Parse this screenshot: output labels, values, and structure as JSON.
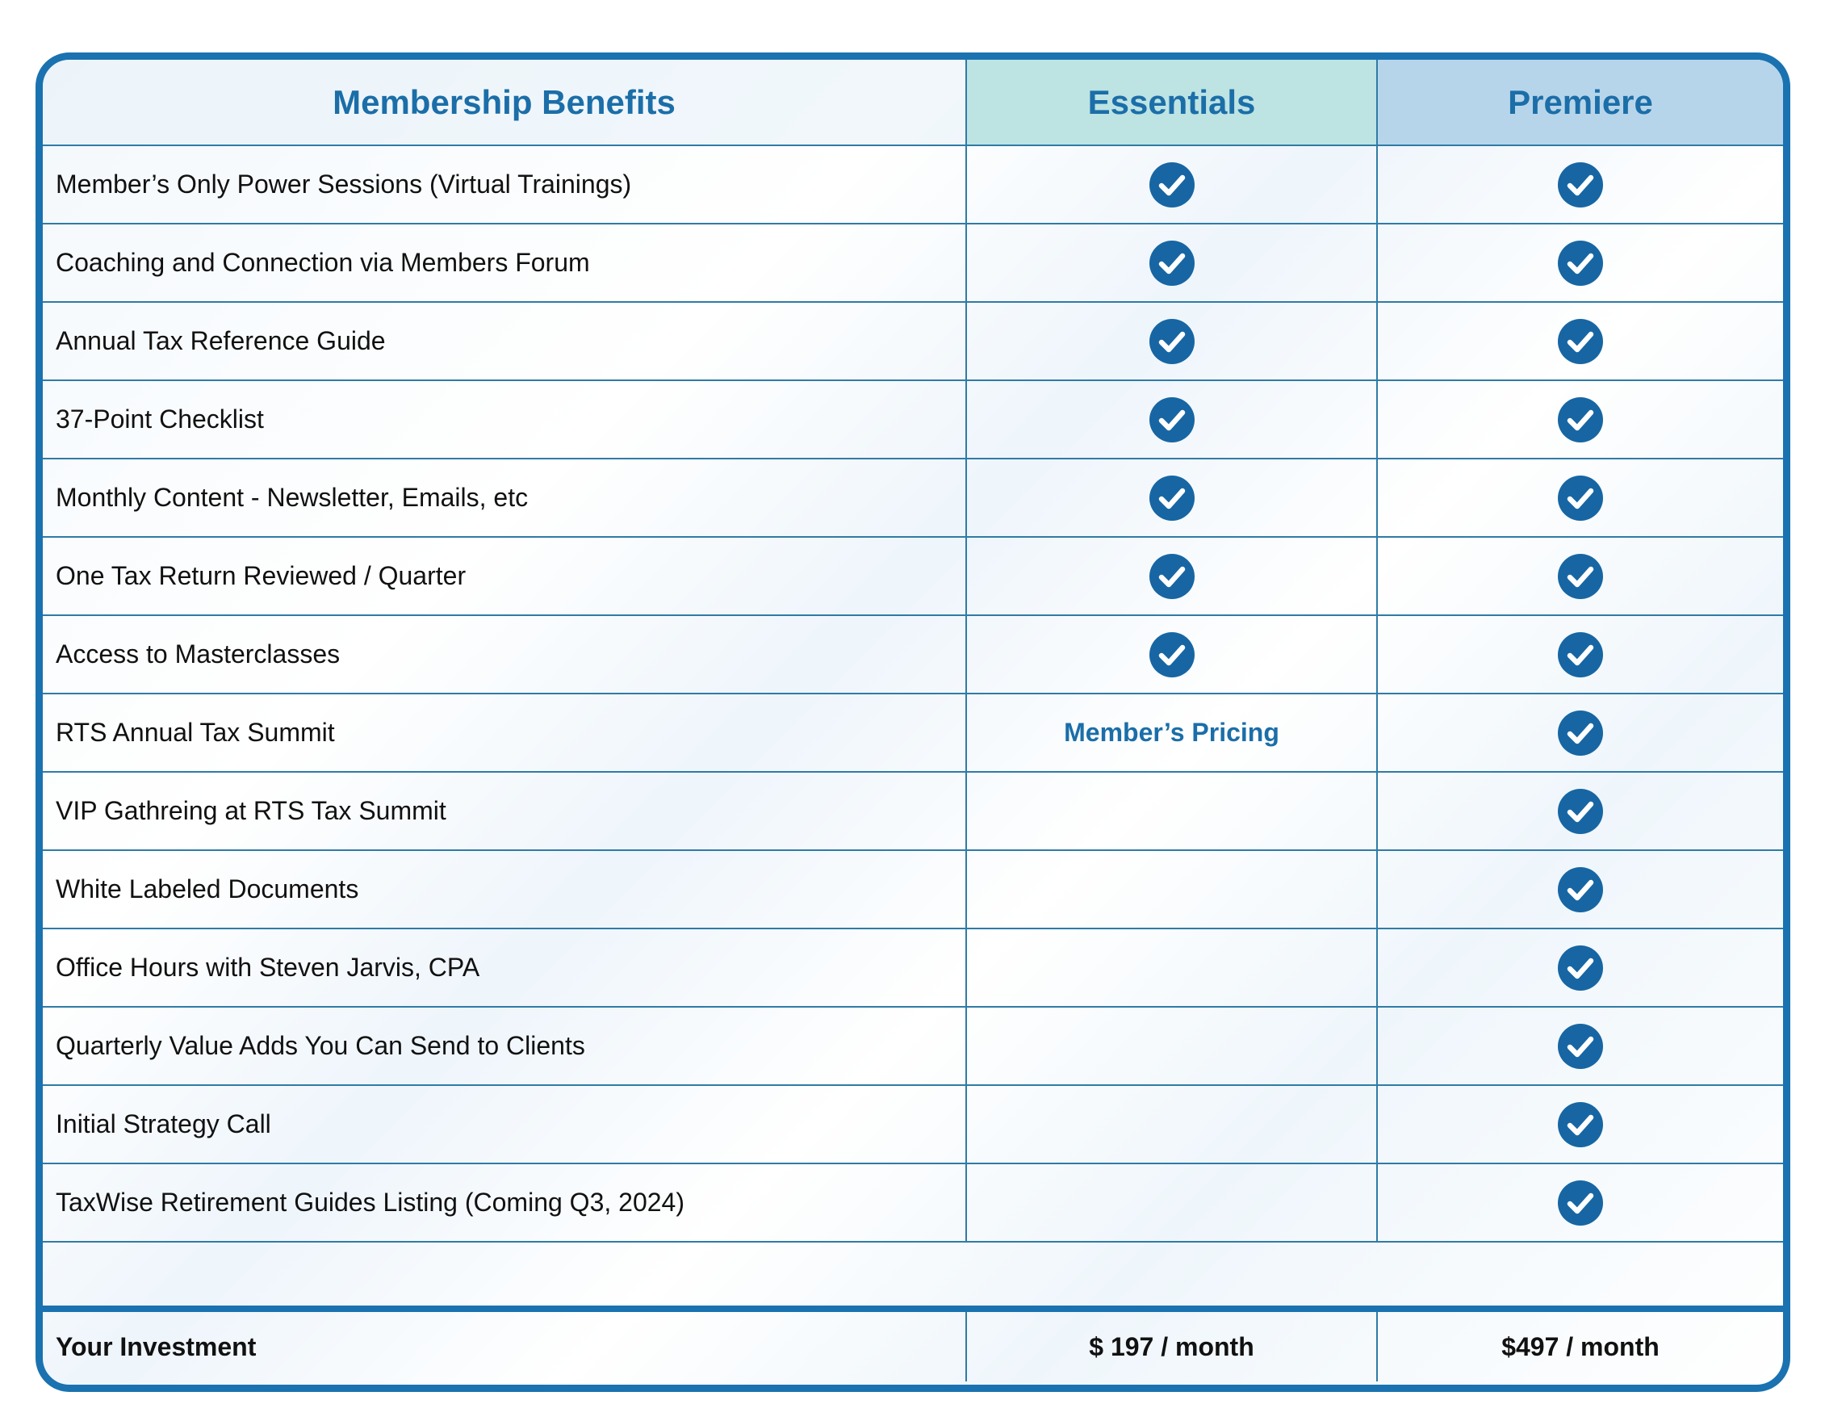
{
  "header": {
    "columns": [
      "Membership Benefits",
      "Essentials",
      "Premiere"
    ]
  },
  "rows": [
    {
      "benefit": "Member’s Only Power Sessions (Virtual Trainings)",
      "essentials": true,
      "premiere": true
    },
    {
      "benefit": "Coaching and Connection via Members Forum",
      "essentials": true,
      "premiere": true
    },
    {
      "benefit": "Annual Tax Reference Guide",
      "essentials": true,
      "premiere": true
    },
    {
      "benefit": "37-Point Checklist",
      "essentials": true,
      "premiere": true
    },
    {
      "benefit": "Monthly Content - Newsletter, Emails, etc",
      "essentials": true,
      "premiere": true
    },
    {
      "benefit": "One Tax Return Reviewed / Quarter",
      "essentials": true,
      "premiere": true
    },
    {
      "benefit": "Access to Masterclasses",
      "essentials": true,
      "premiere": true
    },
    {
      "benefit": "RTS Annual Tax Summit",
      "essentials": "Member’s Pricing",
      "premiere": true
    },
    {
      "benefit": "VIP Gathreing at RTS Tax Summit",
      "essentials": false,
      "premiere": true
    },
    {
      "benefit": "White Labeled Documents",
      "essentials": false,
      "premiere": true
    },
    {
      "benefit": "Office Hours with Steven Jarvis, CPA",
      "essentials": false,
      "premiere": true
    },
    {
      "benefit": "Quarterly Value Adds You Can Send to Clients",
      "essentials": false,
      "premiere": true
    },
    {
      "benefit": "Initial Strategy Call",
      "essentials": false,
      "premiere": true
    },
    {
      "benefit": "TaxWise Retirement Guides Listing (Coming Q3, 2024)",
      "essentials": false,
      "premiere": true
    }
  ],
  "footer": {
    "label": "Your Investment",
    "essentials": "$ 197 / month",
    "premiere": "$497 / month"
  }
}
